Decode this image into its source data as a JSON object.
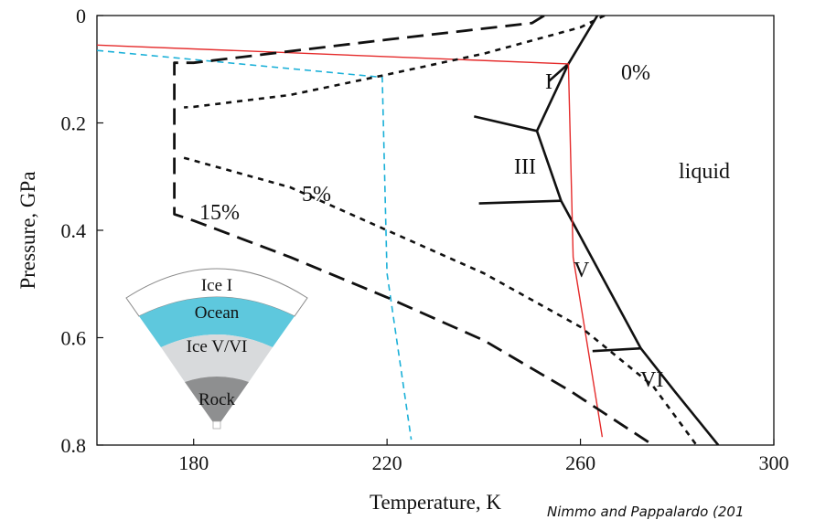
{
  "chart_data": {
    "type": "line",
    "xlabel": "Temperature, K",
    "ylabel": "Pressure, GPa",
    "xlim": [
      160,
      300
    ],
    "ylim": [
      0,
      0.8
    ],
    "y_inverted": true,
    "x_ticks": [
      180,
      220,
      260,
      300
    ],
    "y_ticks": [
      0,
      0.2,
      0.4,
      0.6,
      0.8
    ],
    "x_tick_labels": [
      "180",
      "220",
      "260",
      "300"
    ],
    "y_tick_labels": [
      "0",
      "0.2",
      "0.4",
      "0.6",
      "0.8"
    ],
    "grid": false,
    "series": [
      {
        "style": "solid-black",
        "points": [
          [
            263.5,
            0
          ],
          [
            257.5,
            0.09
          ],
          [
            253.5,
            0.122
          ]
        ]
      },
      {
        "style": "solid-black",
        "points": [
          [
            257.5,
            0.09
          ],
          [
            251,
            0.215
          ]
        ]
      },
      {
        "style": "solid-black",
        "points": [
          [
            251,
            0.215
          ],
          [
            238,
            0.188
          ]
        ]
      },
      {
        "style": "solid-black",
        "points": [
          [
            251,
            0.215
          ],
          [
            256,
            0.345
          ]
        ]
      },
      {
        "style": "solid-black",
        "points": [
          [
            256,
            0.345
          ],
          [
            239,
            0.35
          ]
        ]
      },
      {
        "style": "solid-black",
        "points": [
          [
            256,
            0.345
          ],
          [
            272.5,
            0.62
          ]
        ]
      },
      {
        "style": "solid-black",
        "points": [
          [
            272.5,
            0.62
          ],
          [
            262.5,
            0.625
          ]
        ]
      },
      {
        "style": "solid-black",
        "points": [
          [
            272.5,
            0.62
          ],
          [
            279.5,
            0.7
          ],
          [
            288.5,
            0.8
          ]
        ]
      },
      {
        "style": "red",
        "points": [
          [
            160,
            0.055
          ],
          [
            257.5,
            0.09
          ],
          [
            258.5,
            0.45
          ],
          [
            264.5,
            0.785
          ]
        ]
      },
      {
        "style": "cyan-dashed",
        "points": [
          [
            160,
            0.065
          ],
          [
            219,
            0.115
          ],
          [
            220,
            0.48
          ],
          [
            225,
            0.79
          ]
        ]
      },
      {
        "style": "black-long-dash",
        "points": [
          [
            252.5,
            0
          ],
          [
            250,
            0.014
          ],
          [
            220,
            0.045
          ],
          [
            180,
            0.088
          ],
          [
            176,
            0.088
          ],
          [
            176,
            0.37
          ],
          [
            180,
            0.382
          ],
          [
            200,
            0.45
          ],
          [
            220,
            0.525
          ],
          [
            240,
            0.605
          ],
          [
            258,
            0.7
          ],
          [
            275,
            0.8
          ]
        ]
      },
      {
        "style": "black-short-dash",
        "points": [
          [
            265,
            0
          ],
          [
            260,
            0.022
          ],
          [
            240,
            0.071
          ],
          [
            220,
            0.11
          ],
          [
            200,
            0.148
          ],
          [
            180,
            0.17
          ],
          [
            178,
            0.171
          ]
        ]
      },
      {
        "style": "black-short-dash",
        "points": [
          [
            178,
            0.265
          ],
          [
            200,
            0.32
          ],
          [
            220,
            0.4
          ],
          [
            240,
            0.48
          ],
          [
            260,
            0.58
          ],
          [
            275,
            0.69
          ],
          [
            284,
            0.8
          ]
        ]
      }
    ],
    "annotations": [
      "I",
      "0%",
      "III",
      "liquid",
      "5%",
      "15%",
      "V",
      "VI"
    ],
    "inset_layers": [
      "Ice I",
      "Ocean",
      "Ice V/VI",
      "Rock"
    ],
    "colors": {
      "red": "#e52b2b",
      "cyan": "#1ab0d8",
      "ocean": "#5ec8dd",
      "ice_vvi": "#d8dadc",
      "rock": "#8e8f90",
      "ice_i": "#ffffff"
    }
  },
  "credit": "Nimmo and Pappalardo (201"
}
